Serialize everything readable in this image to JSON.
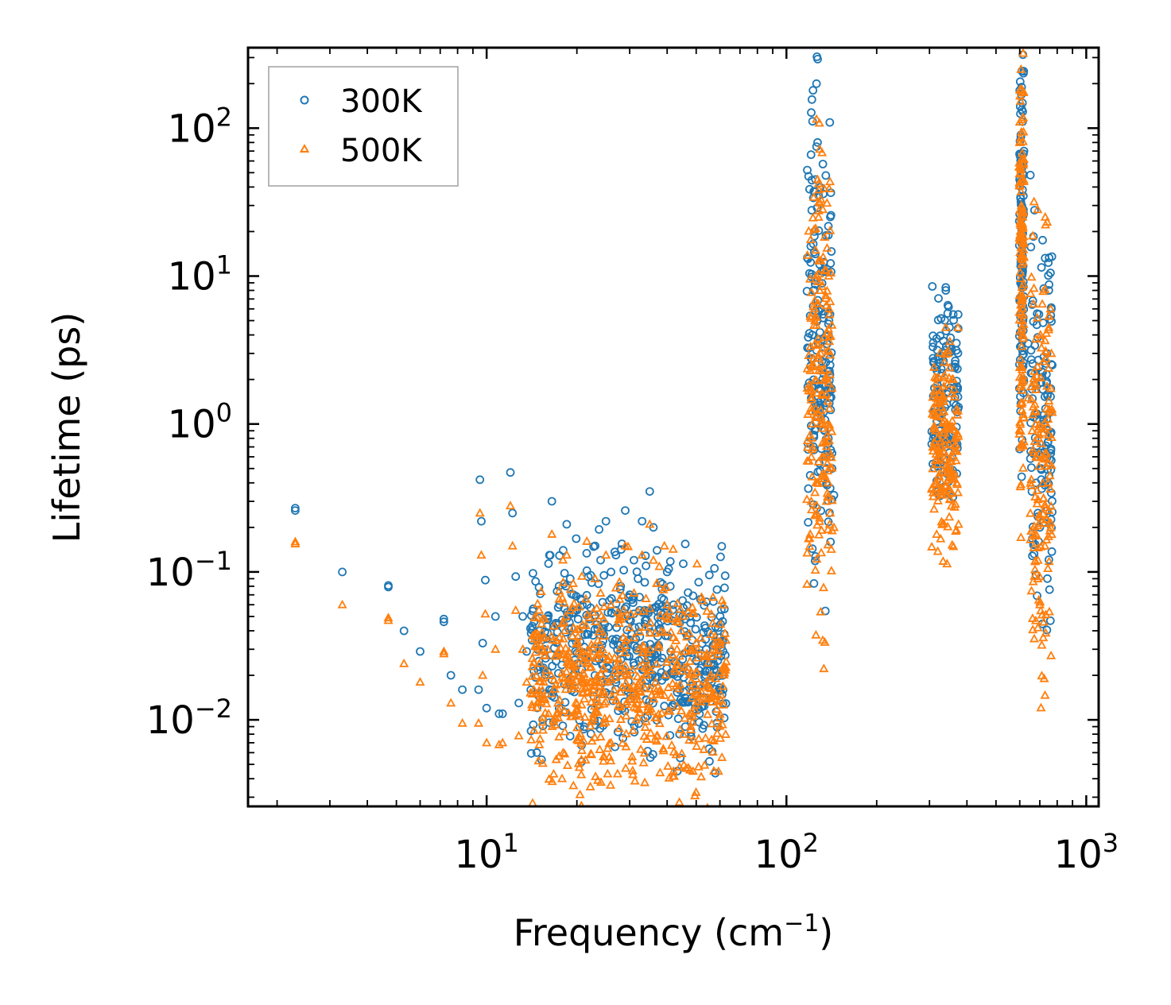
{
  "chart_data": {
    "type": "scatter",
    "title": "",
    "xlabel": "Frequency (cm",
    "xlabel_sup": "−1",
    "xlabel_close": ")",
    "ylabel": "Lifetime (ps)",
    "xscale": "log",
    "yscale": "log",
    "xlim": [
      1.6,
      1100
    ],
    "ylim": [
      0.0026,
      350
    ],
    "legend_location": "upper-left",
    "x_ticks": [
      {
        "value": 10,
        "base": "10",
        "exp": "1"
      },
      {
        "value": 100,
        "base": "10",
        "exp": "2"
      },
      {
        "value": 1000,
        "base": "10",
        "exp": "3"
      }
    ],
    "y_ticks": [
      {
        "value": 0.01,
        "base": "10",
        "exp": "−2"
      },
      {
        "value": 0.1,
        "base": "10",
        "exp": "−1"
      },
      {
        "value": 1,
        "base": "10",
        "exp": "0"
      },
      {
        "value": 10,
        "base": "10",
        "exp": "1"
      },
      {
        "value": 100,
        "base": "10",
        "exp": "2"
      }
    ],
    "series": [
      {
        "name": "300K",
        "marker": "circle",
        "color": "#1f77b4",
        "points": [
          [
            2.3,
            0.27
          ],
          [
            2.3,
            0.26
          ],
          [
            3.3,
            0.1
          ],
          [
            4.7,
            0.081
          ],
          [
            4.7,
            0.079
          ],
          [
            5.3,
            0.04
          ],
          [
            6.0,
            0.029
          ],
          [
            7.2,
            0.048
          ],
          [
            7.2,
            0.046
          ],
          [
            7.6,
            0.02
          ],
          [
            8.3,
            0.016
          ],
          [
            9.4,
            0.016
          ],
          [
            9.5,
            0.42
          ],
          [
            9.6,
            0.22
          ],
          [
            9.7,
            0.033
          ],
          [
            9.9,
            0.088
          ],
          [
            10.0,
            0.012
          ],
          [
            10.7,
            0.05
          ],
          [
            11.0,
            0.011
          ],
          [
            11.3,
            0.011
          ],
          [
            12.0,
            0.47
          ],
          [
            12.2,
            0.25
          ],
          [
            12.5,
            0.093
          ],
          [
            12.8,
            0.013
          ],
          [
            13.2,
            0.05
          ],
          [
            13.6,
            0.029
          ],
          [
            14.2,
            0.043
          ],
          [
            15.0,
            0.04
          ],
          [
            15.5,
            0.03
          ],
          [
            16.0,
            0.05
          ],
          [
            16.5,
            0.3
          ],
          [
            17.0,
            0.045
          ],
          [
            17.5,
            0.06
          ],
          [
            18.0,
            0.14
          ],
          [
            18.5,
            0.21
          ],
          [
            19.0,
            0.09
          ],
          [
            19.5,
            0.07
          ],
          [
            20.0,
            0.055
          ],
          [
            21.0,
            0.042
          ],
          [
            22.0,
            0.048
          ],
          [
            23.0,
            0.15
          ],
          [
            24.0,
            0.12
          ],
          [
            25.0,
            0.22
          ],
          [
            26.0,
            0.1
          ],
          [
            27.0,
            0.13
          ],
          [
            28.0,
            0.08
          ],
          [
            29.0,
            0.26
          ],
          [
            30.0,
            0.07
          ],
          [
            31.0,
            0.12
          ],
          [
            32.0,
            0.09
          ],
          [
            33.0,
            0.22
          ],
          [
            34.0,
            0.11
          ],
          [
            35.0,
            0.35
          ],
          [
            36.0,
            0.2
          ],
          [
            37.0,
            0.14
          ],
          [
            38.0,
            0.085
          ],
          [
            39.0,
            0.065
          ],
          [
            40.0,
            0.1
          ],
          [
            41.0,
            0.08
          ],
          [
            42.0,
            0.06
          ],
          [
            44.0,
            0.045
          ],
          [
            46.0,
            0.048
          ],
          [
            48.0,
            0.03
          ],
          [
            50.0,
            0.025
          ],
          [
            52.0,
            0.028
          ],
          [
            54.0,
            0.03
          ],
          [
            56.0,
            0.024
          ],
          [
            58.0,
            0.032
          ],
          [
            60.0,
            0.036
          ],
          [
            62.0,
            0.038
          ],
          [
            44.0,
            0.008
          ],
          [
            46.0,
            0.009
          ],
          [
            120,
            0.45
          ],
          [
            121,
            1.5
          ],
          [
            122,
            4.0
          ],
          [
            123,
            8.0
          ],
          [
            124,
            20
          ],
          [
            125,
            45
          ],
          [
            126,
            200
          ],
          [
            127,
            80
          ],
          [
            128,
            35
          ],
          [
            129,
            12
          ],
          [
            130,
            6.0
          ],
          [
            131,
            3.0
          ],
          [
            132,
            2.0
          ],
          [
            133,
            1.2
          ],
          [
            134,
            0.9
          ],
          [
            135,
            0.6
          ],
          [
            136,
            0.5
          ],
          [
            137,
            1.6
          ],
          [
            138,
            0.8
          ],
          [
            140,
            0.6
          ],
          [
            142,
            0.5
          ],
          [
            144,
            0.33
          ],
          [
            126,
            75
          ],
          [
            310,
            1.2
          ],
          [
            315,
            1.6
          ],
          [
            320,
            2.0
          ],
          [
            325,
            2.6
          ],
          [
            330,
            2.2
          ],
          [
            335,
            3.0
          ],
          [
            340,
            8.0
          ],
          [
            345,
            5.6
          ],
          [
            350,
            4.5
          ],
          [
            355,
            3.2
          ],
          [
            360,
            5.5
          ],
          [
            365,
            2.4
          ],
          [
            370,
            1.8
          ],
          [
            375,
            1.3
          ],
          [
            600,
            180
          ],
          [
            602,
            140
          ],
          [
            605,
            90
          ],
          [
            608,
            60
          ],
          [
            610,
            30
          ],
          [
            612,
            12
          ],
          [
            615,
            5.0
          ],
          [
            618,
            2.0
          ],
          [
            640,
            3.5
          ],
          [
            660,
            2.2
          ],
          [
            680,
            0.4
          ],
          [
            690,
            0.25
          ],
          [
            700,
            0.2
          ],
          [
            720,
            1.0
          ],
          [
            740,
            3.0
          ],
          [
            750,
            8.0
          ],
          [
            760,
            10.5
          ],
          [
            765,
            6.0
          ],
          [
            770,
            2.5
          ]
        ]
      },
      {
        "name": "500K",
        "marker": "triangle",
        "color": "#ff7f0e",
        "points": [
          [
            2.3,
            0.16
          ],
          [
            2.3,
            0.155
          ],
          [
            3.3,
            0.06
          ],
          [
            4.7,
            0.049
          ],
          [
            4.7,
            0.047
          ],
          [
            5.3,
            0.024
          ],
          [
            6.0,
            0.018
          ],
          [
            7.2,
            0.029
          ],
          [
            7.2,
            0.028
          ],
          [
            7.6,
            0.013
          ],
          [
            8.3,
            0.0095
          ],
          [
            9.4,
            0.0095
          ],
          [
            9.5,
            0.25
          ],
          [
            9.6,
            0.13
          ],
          [
            9.7,
            0.02
          ],
          [
            9.9,
            0.052
          ],
          [
            10.0,
            0.007
          ],
          [
            10.7,
            0.03
          ],
          [
            11.0,
            0.0068
          ],
          [
            11.3,
            0.007
          ],
          [
            12.0,
            0.28
          ],
          [
            12.2,
            0.15
          ],
          [
            12.5,
            0.055
          ],
          [
            12.8,
            0.0078
          ],
          [
            13.2,
            0.03
          ],
          [
            13.6,
            0.018
          ],
          [
            14.2,
            0.026
          ],
          [
            15.0,
            0.024
          ],
          [
            15.5,
            0.018
          ],
          [
            16.0,
            0.03
          ],
          [
            16.5,
            0.18
          ],
          [
            17.0,
            0.027
          ],
          [
            17.5,
            0.036
          ],
          [
            18.0,
            0.085
          ],
          [
            18.5,
            0.13
          ],
          [
            19.0,
            0.055
          ],
          [
            19.5,
            0.042
          ],
          [
            20.0,
            0.033
          ],
          [
            21.0,
            0.025
          ],
          [
            22.0,
            0.029
          ],
          [
            23.0,
            0.09
          ],
          [
            24.0,
            0.072
          ],
          [
            25.0,
            0.13
          ],
          [
            26.0,
            0.06
          ],
          [
            27.0,
            0.078
          ],
          [
            28.0,
            0.048
          ],
          [
            29.0,
            0.15
          ],
          [
            30.0,
            0.042
          ],
          [
            31.0,
            0.072
          ],
          [
            32.0,
            0.054
          ],
          [
            33.0,
            0.13
          ],
          [
            34.0,
            0.066
          ],
          [
            35.0,
            0.21
          ],
          [
            36.0,
            0.12
          ],
          [
            37.0,
            0.084
          ],
          [
            38.0,
            0.051
          ],
          [
            39.0,
            0.039
          ],
          [
            40.0,
            0.06
          ],
          [
            41.0,
            0.048
          ],
          [
            42.0,
            0.036
          ],
          [
            44.0,
            0.027
          ],
          [
            46.0,
            0.029
          ],
          [
            48.0,
            0.018
          ],
          [
            50.0,
            0.015
          ],
          [
            52.0,
            0.017
          ],
          [
            54.0,
            0.018
          ],
          [
            56.0,
            0.014
          ],
          [
            58.0,
            0.019
          ],
          [
            60.0,
            0.021
          ],
          [
            62.0,
            0.023
          ],
          [
            18.0,
            0.006
          ],
          [
            26.0,
            0.007
          ],
          [
            42.0,
            0.0045
          ],
          [
            44.0,
            0.0048
          ],
          [
            120,
            0.18
          ],
          [
            121,
            0.3
          ],
          [
            122,
            1.0
          ],
          [
            123,
            2.5
          ],
          [
            124,
            6.0
          ],
          [
            125,
            15
          ],
          [
            126,
            115
          ],
          [
            127,
            45
          ],
          [
            128,
            25
          ],
          [
            129,
            8.0
          ],
          [
            130,
            3.0
          ],
          [
            131,
            1.6
          ],
          [
            132,
            1.0
          ],
          [
            133,
            0.6
          ],
          [
            134,
            0.45
          ],
          [
            136,
            0.3
          ],
          [
            138,
            0.4
          ],
          [
            140,
            0.25
          ],
          [
            142,
            0.19
          ],
          [
            144,
            0.2
          ],
          [
            310,
            0.7
          ],
          [
            315,
            0.9
          ],
          [
            320,
            1.2
          ],
          [
            325,
            1.6
          ],
          [
            330,
            1.3
          ],
          [
            335,
            1.8
          ],
          [
            340,
            4.5
          ],
          [
            345,
            3.0
          ],
          [
            350,
            2.4
          ],
          [
            355,
            1.6
          ],
          [
            360,
            2.0
          ],
          [
            365,
            0.8
          ],
          [
            370,
            0.4
          ],
          [
            375,
            0.21
          ],
          [
            600,
            110
          ],
          [
            602,
            80
          ],
          [
            605,
            50
          ],
          [
            608,
            30
          ],
          [
            610,
            12
          ],
          [
            612,
            5.0
          ],
          [
            615,
            2.0
          ],
          [
            618,
            1.1
          ],
          [
            640,
            1.5
          ],
          [
            660,
            0.9
          ],
          [
            680,
            0.18
          ],
          [
            690,
            0.12
          ],
          [
            700,
            0.06
          ],
          [
            720,
            0.6
          ],
          [
            740,
            1.8
          ],
          [
            750,
            4.5
          ],
          [
            760,
            6.0
          ],
          [
            765,
            3.0
          ],
          [
            770,
            1.2
          ]
        ]
      }
    ],
    "clusters": [
      {
        "series": 0,
        "count": 520,
        "xmin": 14,
        "xmax": 63,
        "ycenter": 0.028,
        "yspread": 0.9
      },
      {
        "series": 1,
        "count": 620,
        "xmin": 14,
        "xmax": 63,
        "ycenter": 0.017,
        "yspread": 0.95
      },
      {
        "series": 0,
        "count": 170,
        "xmin": 117,
        "xmax": 142,
        "ycenter": 3.5,
        "yspread": 2.2
      },
      {
        "series": 1,
        "count": 190,
        "xmin": 117,
        "xmax": 142,
        "ycenter": 2.0,
        "yspread": 2.2
      },
      {
        "series": 0,
        "count": 130,
        "xmin": 305,
        "xmax": 375,
        "ycenter": 1.4,
        "yspread": 0.9
      },
      {
        "series": 1,
        "count": 160,
        "xmin": 305,
        "xmax": 375,
        "ycenter": 0.7,
        "yspread": 1.0
      },
      {
        "series": 0,
        "count": 120,
        "xmin": 598,
        "xmax": 620,
        "ycenter": 20,
        "yspread": 2.0
      },
      {
        "series": 1,
        "count": 140,
        "xmin": 598,
        "xmax": 620,
        "ycenter": 12,
        "yspread": 2.0
      },
      {
        "series": 0,
        "count": 120,
        "xmin": 650,
        "xmax": 770,
        "ycenter": 1.2,
        "yspread": 2.0
      },
      {
        "series": 1,
        "count": 150,
        "xmin": 650,
        "xmax": 770,
        "ycenter": 0.6,
        "yspread": 2.2
      }
    ]
  }
}
